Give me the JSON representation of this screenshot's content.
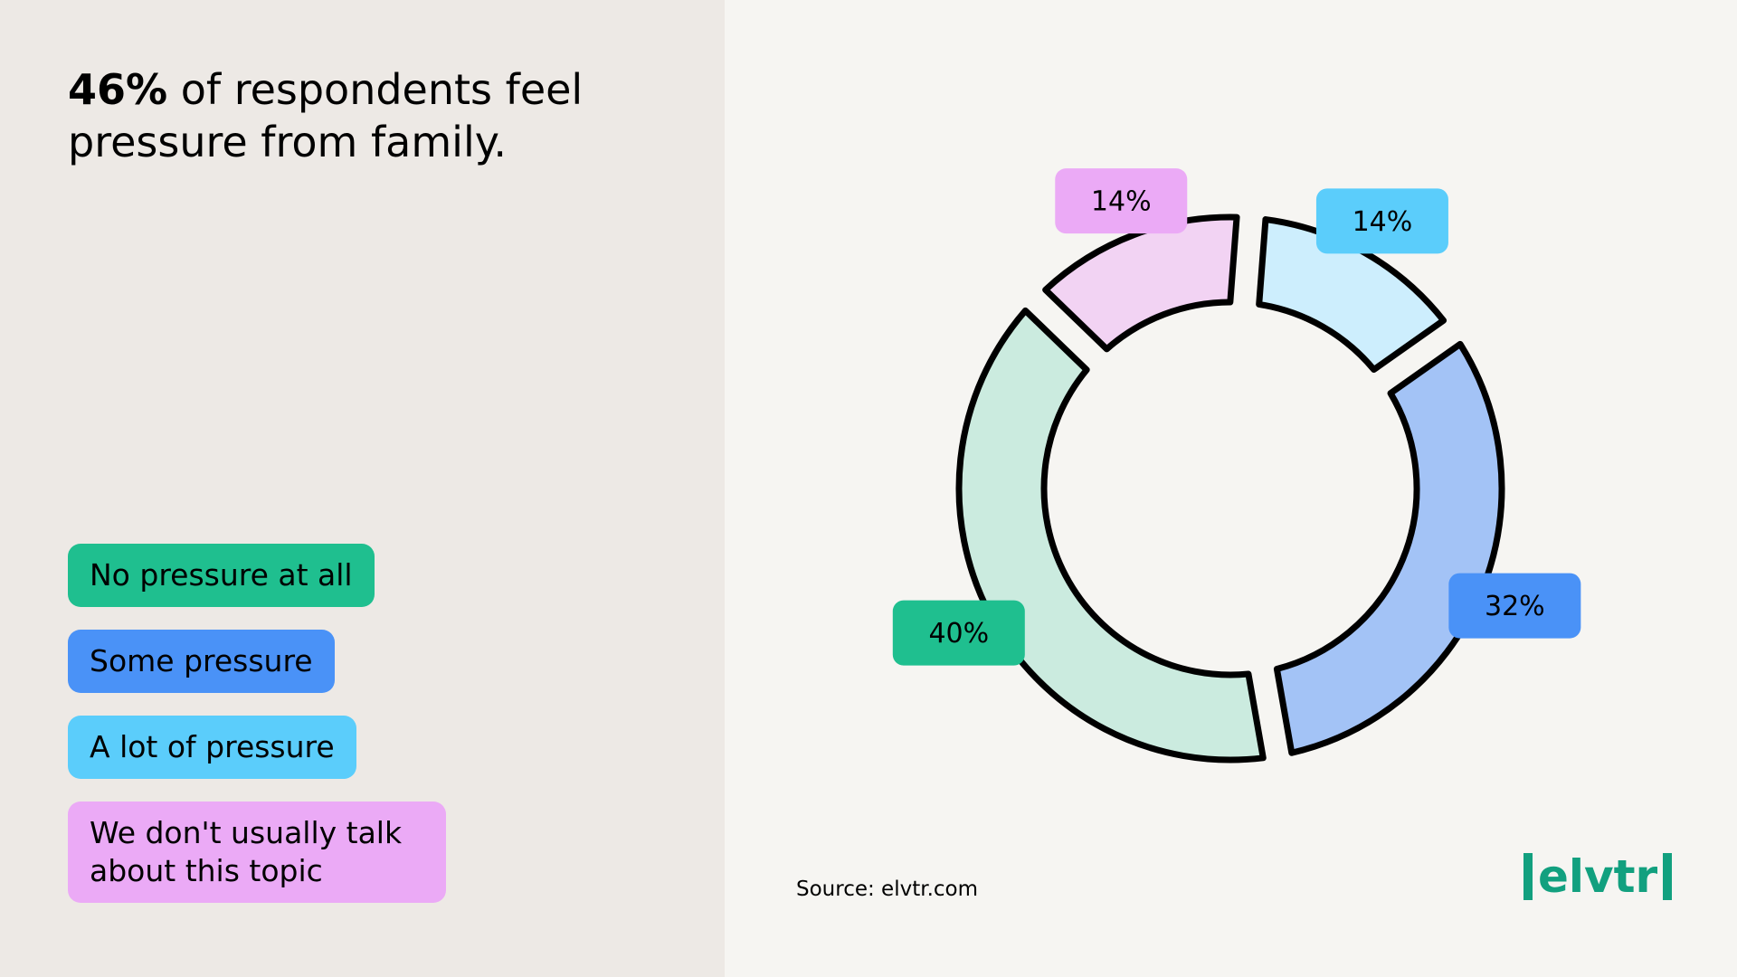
{
  "chart_data": {
    "type": "donut",
    "title": {
      "highlight": "46%",
      "text": "of respondents feel pressure from family."
    },
    "categories": [
      "No pressure at all",
      "Some pressure",
      "A lot of pressure",
      "We don't usually talk about this topic"
    ],
    "values": [
      40,
      32,
      14,
      14
    ],
    "value_labels": [
      "40%",
      "32%",
      "14%",
      "14%"
    ],
    "colors": [
      "#1fbf8f",
      "#4a92f7",
      "#5bcdfb",
      "#ebaaf6"
    ],
    "segment_colors": [
      "#cbebdf",
      "#a3c3f6",
      "#cdeefd",
      "#f2d3f3"
    ],
    "source": "Source: elvtr.com",
    "logo": "elvtr"
  }
}
